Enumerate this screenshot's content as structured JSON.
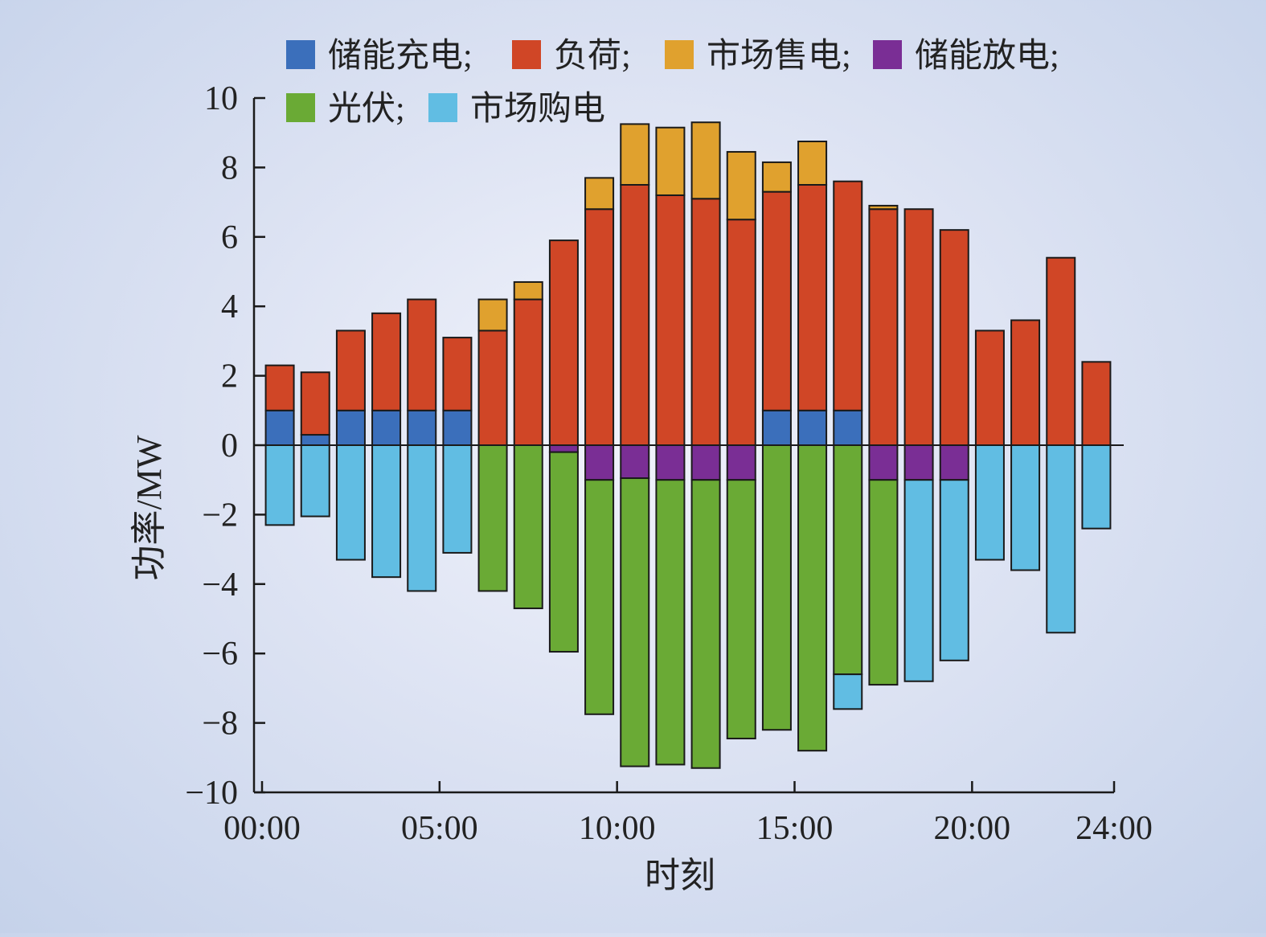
{
  "chart_data": {
    "type": "bar",
    "stacked": true,
    "xlabel": "时刻",
    "ylabel": "功率/MW",
    "ylim": [
      -10,
      10
    ],
    "xlim": [
      0,
      24
    ],
    "yticks": [
      10,
      8,
      6,
      4,
      2,
      0,
      -2,
      -4,
      -6,
      -8,
      -10
    ],
    "ytick_labels": [
      "10",
      "8",
      "6",
      "4",
      "2",
      "0",
      "−2",
      "−4",
      "−6",
      "−8",
      "−10"
    ],
    "xticks": [
      0,
      5,
      10,
      15,
      20,
      24
    ],
    "xtick_labels": [
      "00:00",
      "05:00",
      "10:00",
      "15:00",
      "20:00",
      "24:00"
    ],
    "x": [
      1,
      2,
      3,
      4,
      5,
      6,
      7,
      8,
      9,
      10,
      11,
      12,
      13,
      14,
      15,
      16,
      17,
      18,
      19,
      20,
      21,
      22,
      23,
      24
    ],
    "grid": false,
    "legend_position": "top",
    "series": [
      {
        "name": "储能充电",
        "legend_label": "储能充电;",
        "color": "#3b6fbb",
        "values": [
          1.0,
          0.3,
          1.0,
          1.0,
          1.0,
          1.0,
          0,
          0,
          0,
          0,
          0,
          0,
          0,
          0,
          1.0,
          1.0,
          1.0,
          0,
          0,
          0,
          0,
          0,
          0,
          0
        ]
      },
      {
        "name": "负荷",
        "legend_label": "负荷;",
        "color": "#d04626",
        "values": [
          1.3,
          1.8,
          2.3,
          2.8,
          3.2,
          2.1,
          3.3,
          4.2,
          5.9,
          6.8,
          7.5,
          7.2,
          7.1,
          6.5,
          6.3,
          6.5,
          6.6,
          6.8,
          6.8,
          6.2,
          3.3,
          3.6,
          5.4,
          2.4
        ]
      },
      {
        "name": "市场售电",
        "legend_label": "市场售电;",
        "color": "#e0a12e",
        "values": [
          0,
          0,
          0,
          0,
          0,
          0,
          0.9,
          0.5,
          0,
          0.9,
          1.75,
          1.95,
          2.2,
          1.95,
          0.85,
          1.25,
          0,
          0.1,
          0,
          0,
          0,
          0,
          0,
          0
        ]
      },
      {
        "name": "储能放电",
        "legend_label": "储能放电;",
        "color": "#7a2e95",
        "values": [
          0,
          0,
          0,
          0,
          0,
          0,
          0,
          0,
          -0.2,
          -1.0,
          -0.95,
          -1.0,
          -1.0,
          -1.0,
          0,
          0,
          0,
          -1.0,
          -1.0,
          -1.0,
          0,
          0,
          0,
          0
        ]
      },
      {
        "name": "光伏",
        "legend_label": "光伏;",
        "color": "#6aaa35",
        "values": [
          0,
          0,
          0,
          0,
          0,
          0,
          -4.2,
          -4.7,
          -5.75,
          -6.75,
          -8.3,
          -8.2,
          -8.3,
          -7.45,
          -8.2,
          -8.8,
          -6.6,
          -5.9,
          0,
          0,
          0,
          0,
          0,
          0
        ]
      },
      {
        "name": "市场购电",
        "legend_label": "市场购电",
        "color": "#61bde3",
        "values": [
          -2.3,
          -2.05,
          -3.3,
          -3.8,
          -4.2,
          -3.1,
          0,
          0,
          0,
          0,
          0,
          0,
          0,
          0,
          0,
          0,
          -1.0,
          0,
          -5.8,
          -5.2,
          -3.3,
          -3.6,
          -5.4,
          -2.4
        ]
      }
    ]
  }
}
